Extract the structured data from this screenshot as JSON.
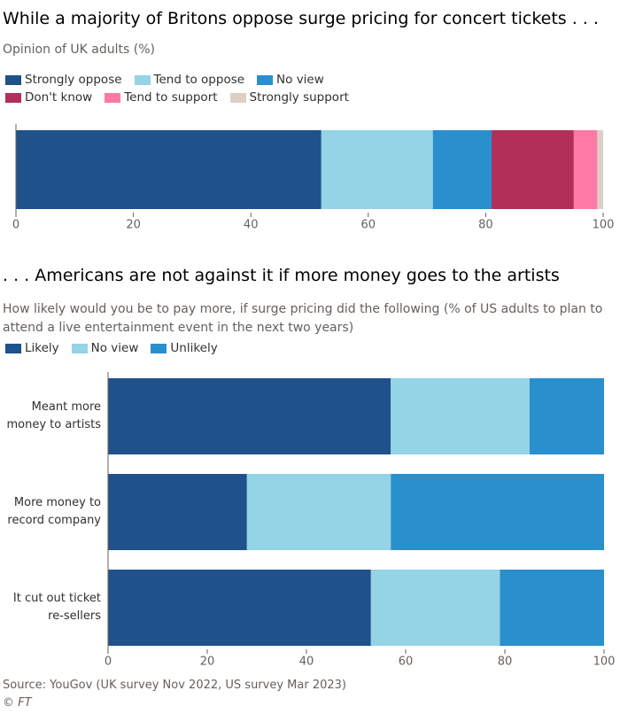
{
  "chart_data": [
    {
      "type": "bar",
      "orientation": "horizontal",
      "stacked": true,
      "title": "While a majority of Britons oppose surge pricing for concert tickets . . .",
      "subtitle": "Opinion of UK adults (%)",
      "categories": [
        null
      ],
      "series": [
        {
          "name": "Strongly oppose",
          "color": "#1f518b",
          "values": [
            52
          ]
        },
        {
          "name": "Tend to oppose",
          "color": "#95d3e6",
          "values": [
            19
          ]
        },
        {
          "name": "No view",
          "color": "#2a8fcd",
          "values": [
            10
          ]
        },
        {
          "name": "Don't know",
          "color": "#b03058",
          "values": [
            14
          ]
        },
        {
          "name": "Tend to support",
          "color": "#fe79a5",
          "values": [
            4
          ]
        },
        {
          "name": "Strongly support",
          "color": "#dcd0c6",
          "values": [
            1
          ]
        }
      ],
      "xlim": [
        0,
        100
      ],
      "xticks": [
        0,
        20,
        40,
        60,
        80,
        100
      ]
    },
    {
      "type": "bar",
      "orientation": "horizontal",
      "stacked": true,
      "title": ". . . Americans are not against it if more money goes to the artists",
      "subtitle": "How likely would you be to pay more, if surge pricing did the following (% of US adults to plan to attend a live entertainment event in the next two years)",
      "categories": [
        "Meant more money to artists",
        "More money to record company",
        "It cut out ticket re-sellers"
      ],
      "series": [
        {
          "name": "Likely",
          "color": "#1f518b",
          "values": [
            57,
            28,
            53
          ]
        },
        {
          "name": "No view",
          "color": "#95d3e6",
          "values": [
            28,
            29,
            26
          ]
        },
        {
          "name": "Unlikely",
          "color": "#2a8fcd",
          "values": [
            15,
            43,
            21
          ]
        }
      ],
      "xlim": [
        0,
        100
      ],
      "xticks": [
        0,
        20,
        40,
        60,
        80,
        100
      ]
    }
  ],
  "source": "Source: YouGov (UK survey Nov 2022, US survey Mar 2023)",
  "credit": "© FT"
}
